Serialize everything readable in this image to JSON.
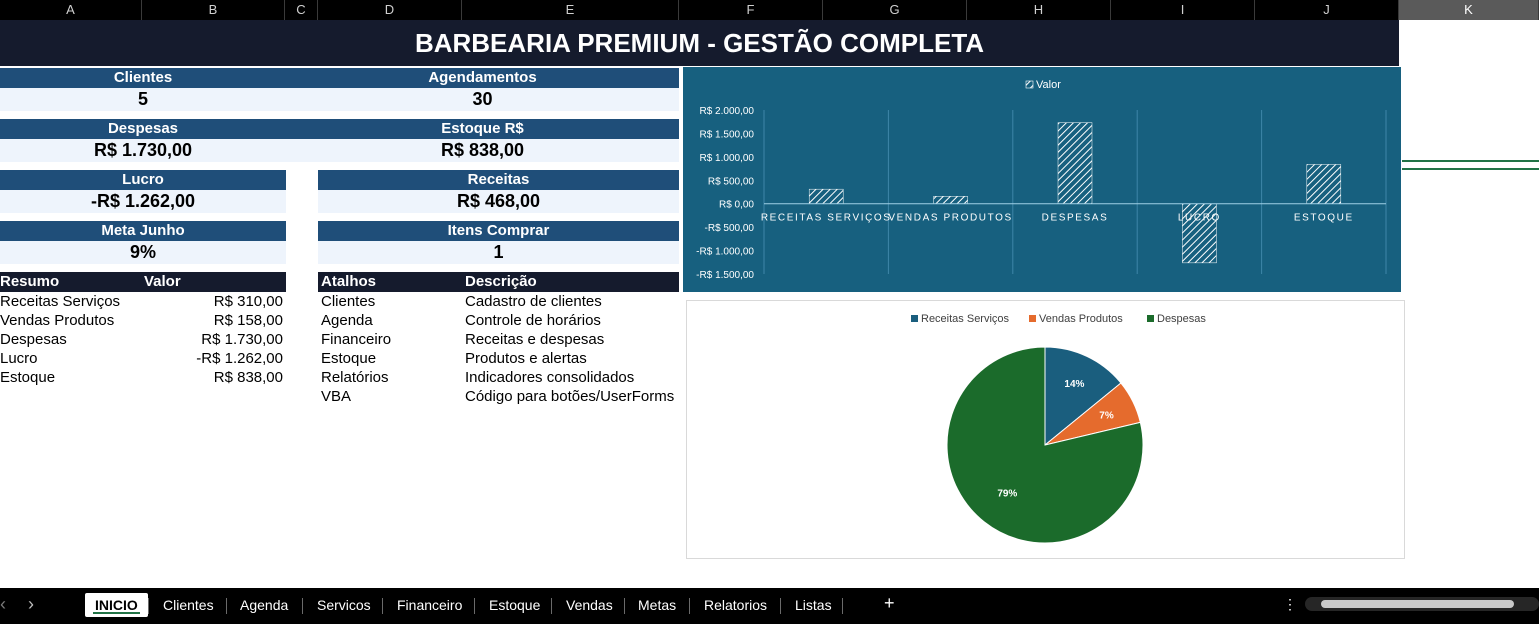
{
  "columns": [
    "A",
    "B",
    "C",
    "D",
    "E",
    "F",
    "G",
    "H",
    "I",
    "J",
    "K"
  ],
  "title": "BARBEARIA PREMIUM - GESTÃO COMPLETA",
  "kpis": {
    "clientes": {
      "label": "Clientes",
      "value": "5"
    },
    "agendamentos": {
      "label": "Agendamentos",
      "value": "30"
    },
    "despesas": {
      "label": "Despesas",
      "value": "R$ 1.730,00"
    },
    "estoque": {
      "label": "Estoque R$",
      "value": "R$ 838,00"
    },
    "lucro": {
      "label": "Lucro",
      "value": "-R$ 1.262,00"
    },
    "receitas": {
      "label": "Receitas",
      "value": "R$ 468,00"
    },
    "meta": {
      "label": "Meta Junho",
      "value": "9%"
    },
    "itens": {
      "label": "Itens Comprar",
      "value": "1"
    }
  },
  "resumo": {
    "headers": [
      "Resumo",
      "Valor"
    ],
    "rows": [
      {
        "name": "Receitas Serviços",
        "value": "R$ 310,00"
      },
      {
        "name": "Vendas Produtos",
        "value": "R$ 158,00"
      },
      {
        "name": "Despesas",
        "value": "R$ 1.730,00"
      },
      {
        "name": "Lucro",
        "value": "-R$ 1.262,00"
      },
      {
        "name": "Estoque",
        "value": "R$ 838,00"
      }
    ]
  },
  "atalhos": {
    "headers": [
      "Atalhos",
      "Descrição"
    ],
    "rows": [
      {
        "name": "Clientes",
        "desc": "Cadastro de clientes"
      },
      {
        "name": "Agenda",
        "desc": "Controle de horários"
      },
      {
        "name": "Financeiro",
        "desc": "Receitas e despesas"
      },
      {
        "name": "Estoque",
        "desc": "Produtos e alertas"
      },
      {
        "name": "Relatórios",
        "desc": "Indicadores consolidados"
      },
      {
        "name": "VBA",
        "desc": "Código para botões/UserForms"
      }
    ]
  },
  "chart_data": [
    {
      "type": "bar",
      "legend": "Valor",
      "legend_position": "top",
      "categories": [
        "RECEITAS SERVIÇOS",
        "VENDAS PRODUTOS",
        "DESPESAS",
        "LUCRO",
        "ESTOQUE"
      ],
      "series": [
        {
          "name": "Valor",
          "values": [
            310,
            158,
            1730,
            -1262,
            838
          ]
        }
      ],
      "ylim": [
        -1500,
        2000
      ],
      "yticks": [
        "R$ 2.000,00",
        "R$ 1.500,00",
        "R$ 1.000,00",
        "R$ 500,00",
        "R$ 0,00",
        "-R$ 500,00",
        "-R$ 1.000,00",
        "-R$ 1.500,00"
      ],
      "grid": true,
      "colors": {
        "background": "#17607f",
        "bar": "#ffffff"
      }
    },
    {
      "type": "pie",
      "legend_position": "top",
      "categories": [
        "Receitas Serviços",
        "Vendas Produtos",
        "Despesas"
      ],
      "values": [
        310,
        158,
        1730
      ],
      "labels": [
        "14%",
        "7%",
        "79%"
      ],
      "colors": [
        "#1a5e7e",
        "#e56b2d",
        "#1b6b2b"
      ]
    }
  ],
  "tabs": [
    "INICIO",
    "Clientes",
    "Agenda",
    "Servicos",
    "Financeiro",
    "Estoque",
    "Vendas",
    "Metas",
    "Relatorios",
    "Listas"
  ],
  "active_tab": "INICIO",
  "nav": {
    "prev": "‹",
    "next": "›",
    "add": "+",
    "more": "⋮"
  },
  "colors": {
    "header_dark": "#151b2d",
    "label_blue": "#1f4e79",
    "value_bg": "#eef4fc",
    "accent_green": "#217346"
  }
}
